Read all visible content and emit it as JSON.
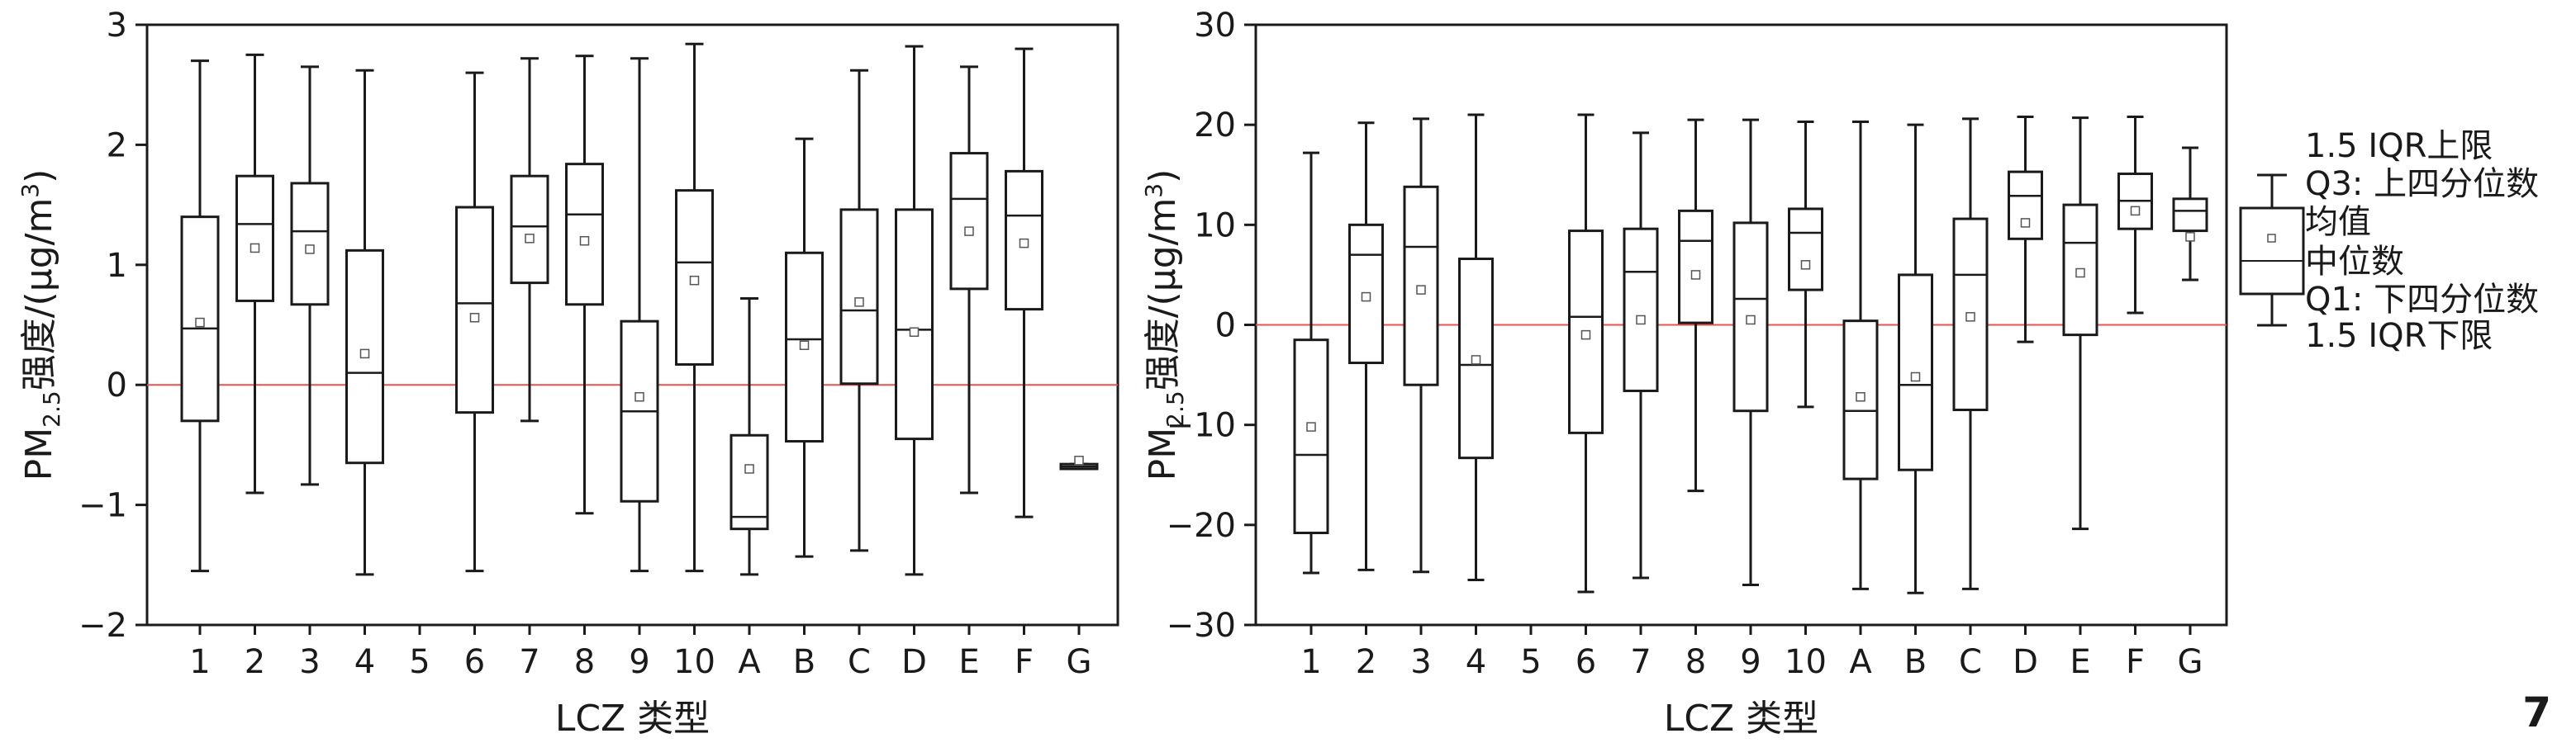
{
  "chart_data": [
    {
      "type": "box",
      "xlabel": "LCZ 类型",
      "ylabel": "PM2.5强度/(μg/m3)",
      "ylabel_parts": {
        "pre": "PM",
        "sub": "2.5",
        "mid": "强度/(μg/m",
        "sup": "3",
        "post": ")"
      },
      "ylim": [
        -2,
        3
      ],
      "yticks": [
        -2,
        -1,
        0,
        1,
        2,
        3
      ],
      "yticks_labels": [
        "−2",
        "−1",
        "0",
        "1",
        "2",
        "3"
      ],
      "reference_line": {
        "y": 0,
        "color": "#e8524f"
      },
      "categories": [
        "1",
        "2",
        "3",
        "4",
        "5",
        "6",
        "7",
        "8",
        "9",
        "10",
        "A",
        "B",
        "C",
        "D",
        "E",
        "F",
        "G"
      ],
      "boxes": [
        {
          "cat": "1",
          "low": -1.55,
          "q1": -0.3,
          "median": 0.47,
          "q3": 1.4,
          "high": 2.7,
          "mean": 0.52
        },
        {
          "cat": "2",
          "low": -0.9,
          "q1": 0.7,
          "median": 1.34,
          "q3": 1.74,
          "high": 2.75,
          "mean": 1.14
        },
        {
          "cat": "3",
          "low": -0.83,
          "q1": 0.67,
          "median": 1.28,
          "q3": 1.68,
          "high": 2.65,
          "mean": 1.13
        },
        {
          "cat": "4",
          "low": -1.58,
          "q1": -0.65,
          "median": 0.1,
          "q3": 1.12,
          "high": 2.62,
          "mean": 0.26
        },
        null,
        {
          "cat": "6",
          "low": -1.55,
          "q1": -0.23,
          "median": 0.68,
          "q3": 1.48,
          "high": 2.6,
          "mean": 0.56
        },
        {
          "cat": "7",
          "low": -0.3,
          "q1": 0.85,
          "median": 1.32,
          "q3": 1.74,
          "high": 2.72,
          "mean": 1.22
        },
        {
          "cat": "8",
          "low": -1.07,
          "q1": 0.67,
          "median": 1.42,
          "q3": 1.84,
          "high": 2.74,
          "mean": 1.2
        },
        {
          "cat": "9",
          "low": -1.55,
          "q1": -0.97,
          "median": -0.22,
          "q3": 0.53,
          "high": 2.72,
          "mean": -0.1
        },
        {
          "cat": "10",
          "low": -1.55,
          "q1": 0.17,
          "median": 1.02,
          "q3": 1.62,
          "high": 2.84,
          "mean": 0.87
        },
        {
          "cat": "A",
          "low": -1.58,
          "q1": -1.2,
          "median": -1.1,
          "q3": -0.42,
          "high": 0.72,
          "mean": -0.7
        },
        {
          "cat": "B",
          "low": -1.43,
          "q1": -0.47,
          "median": 0.38,
          "q3": 1.1,
          "high": 2.05,
          "mean": 0.33
        },
        {
          "cat": "C",
          "low": -1.38,
          "q1": 0.01,
          "median": 0.62,
          "q3": 1.46,
          "high": 2.62,
          "mean": 0.69
        },
        {
          "cat": "D",
          "low": -1.58,
          "q1": -0.45,
          "median": 0.46,
          "q3": 1.46,
          "high": 2.82,
          "mean": 0.44
        },
        {
          "cat": "E",
          "low": -0.9,
          "q1": 0.8,
          "median": 1.55,
          "q3": 1.93,
          "high": 2.65,
          "mean": 1.28
        },
        {
          "cat": "F",
          "low": -1.1,
          "q1": 0.63,
          "median": 1.41,
          "q3": 1.78,
          "high": 2.8,
          "mean": 1.18
        },
        {
          "cat": "G",
          "low": -0.7,
          "q1": -0.7,
          "median": -0.68,
          "q3": -0.66,
          "high": -0.66,
          "mean": -0.63
        }
      ]
    },
    {
      "type": "box",
      "xlabel": "LCZ 类型",
      "ylabel": "PM2.5强度/(μg/m3)",
      "ylabel_parts": {
        "pre": "PM",
        "sub": "2.5",
        "mid": "强度/(μg/m",
        "sup": "3",
        "post": ")"
      },
      "ylim": [
        -30,
        30
      ],
      "yticks": [
        -30,
        -20,
        -10,
        0,
        10,
        20,
        30
      ],
      "yticks_labels": [
        "−30",
        "−20",
        "−10",
        "0",
        "10",
        "20",
        "30"
      ],
      "reference_line": {
        "y": 0,
        "color": "#e8524f"
      },
      "categories": [
        "1",
        "2",
        "3",
        "4",
        "5",
        "6",
        "7",
        "8",
        "9",
        "10",
        "A",
        "B",
        "C",
        "D",
        "E",
        "F",
        "G"
      ],
      "boxes": [
        {
          "cat": "1",
          "low": -24.8,
          "q1": -20.8,
          "median": -13.0,
          "q3": -1.5,
          "high": 17.2,
          "mean": -10.2
        },
        {
          "cat": "2",
          "low": -24.5,
          "q1": -3.8,
          "median": 7.0,
          "q3": 10.0,
          "high": 20.2,
          "mean": 2.8
        },
        {
          "cat": "3",
          "low": -24.7,
          "q1": -6.0,
          "median": 7.8,
          "q3": 13.8,
          "high": 20.6,
          "mean": 3.5
        },
        {
          "cat": "4",
          "low": -25.5,
          "q1": -13.3,
          "median": -4.0,
          "q3": 6.6,
          "high": 21.0,
          "mean": -3.5
        },
        null,
        {
          "cat": "6",
          "low": -26.7,
          "q1": -10.8,
          "median": 0.8,
          "q3": 9.4,
          "high": 21.0,
          "mean": -1.0
        },
        {
          "cat": "7",
          "low": -25.3,
          "q1": -6.6,
          "median": 5.3,
          "q3": 9.6,
          "high": 19.2,
          "mean": 0.5
        },
        {
          "cat": "8",
          "low": -16.6,
          "q1": 0.2,
          "median": 8.4,
          "q3": 11.4,
          "high": 20.5,
          "mean": 5.0
        },
        {
          "cat": "9",
          "low": -26.0,
          "q1": -8.6,
          "median": 2.6,
          "q3": 10.2,
          "high": 20.5,
          "mean": 0.5
        },
        {
          "cat": "10",
          "low": -8.2,
          "q1": 3.5,
          "median": 9.2,
          "q3": 11.6,
          "high": 20.3,
          "mean": 6.0
        },
        {
          "cat": "A",
          "low": -26.4,
          "q1": -15.4,
          "median": -8.6,
          "q3": 0.4,
          "high": 20.3,
          "mean": -7.2
        },
        {
          "cat": "B",
          "low": -26.8,
          "q1": -14.5,
          "median": -6.0,
          "q3": 5.0,
          "high": 20.0,
          "mean": -5.2
        },
        {
          "cat": "C",
          "low": -26.4,
          "q1": -8.5,
          "median": 5.0,
          "q3": 10.6,
          "high": 20.6,
          "mean": 0.8
        },
        {
          "cat": "D",
          "low": -1.7,
          "q1": 8.6,
          "median": 12.9,
          "q3": 15.3,
          "high": 20.8,
          "mean": 10.2
        },
        {
          "cat": "E",
          "low": -20.4,
          "q1": -1.0,
          "median": 8.2,
          "q3": 12.0,
          "high": 20.7,
          "mean": 5.2
        },
        {
          "cat": "F",
          "low": 1.2,
          "q1": 9.6,
          "median": 12.4,
          "q3": 15.1,
          "high": 20.8,
          "mean": 11.4
        },
        {
          "cat": "G",
          "low": 4.5,
          "q1": 9.4,
          "median": 11.4,
          "q3": 12.6,
          "high": 17.7,
          "mean": 8.8
        }
      ]
    }
  ],
  "legend": {
    "items": [
      "1.5 IQR上限",
      "Q3: 上四分位数",
      "均值",
      "中位数",
      "Q1: 下四分位数",
      "1.5 IQR下限"
    ]
  },
  "page_number": "7"
}
